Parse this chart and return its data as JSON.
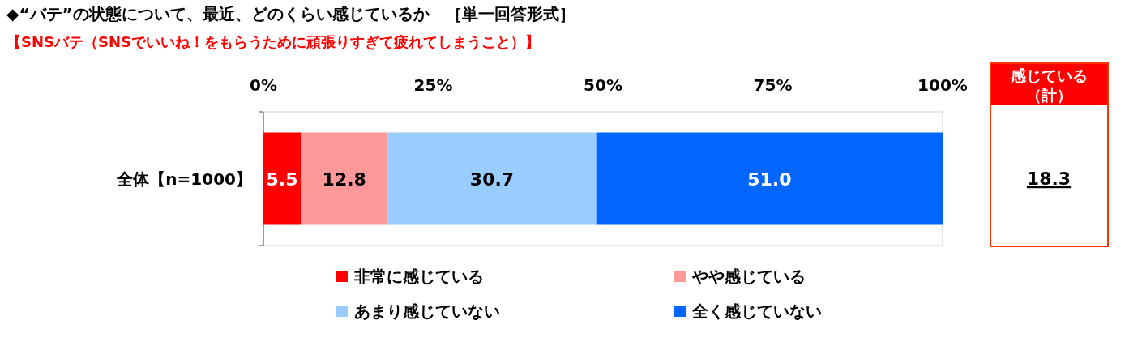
{
  "chart_data": [
    {
      "type": "bar",
      "orientation": "horizontal",
      "stacked": true,
      "title": "◆“バテ”の状態について、最近、どのくらい感じているか　［単一回答形式］",
      "subtitle": "【SNSバテ（SNSでいいね！をもらうために頑張りすぎて疲れてしまうこと）】",
      "categories": [
        "全体【n=1000】"
      ],
      "series": [
        {
          "name": "非常に感じている",
          "color": "#ff0000",
          "values": [
            5.5
          ],
          "value_labels": [
            "5.5"
          ]
        },
        {
          "name": "やや感じている",
          "color": "#ff9999",
          "values": [
            12.8
          ],
          "value_labels": [
            "12.8"
          ]
        },
        {
          "name": "あまり感じていない",
          "color": "#99ccff",
          "values": [
            30.7
          ],
          "value_labels": [
            "30.7"
          ]
        },
        {
          "name": "全く感じていない",
          "color": "#0066ff",
          "values": [
            51.0
          ],
          "value_labels": [
            "51.0"
          ]
        }
      ],
      "xlim": [
        0,
        100
      ],
      "xticks": [
        {
          "value": 0,
          "label": "0%"
        },
        {
          "value": 25,
          "label": "25%"
        },
        {
          "value": 50,
          "label": "50%"
        },
        {
          "value": 75,
          "label": "75%"
        },
        {
          "value": 100,
          "label": "100%"
        }
      ],
      "legend": "bottom",
      "grid": false
    },
    {
      "type": "other",
      "title": "感じている（計）",
      "values": [
        18.3
      ],
      "data_labels": true
    }
  ]
}
